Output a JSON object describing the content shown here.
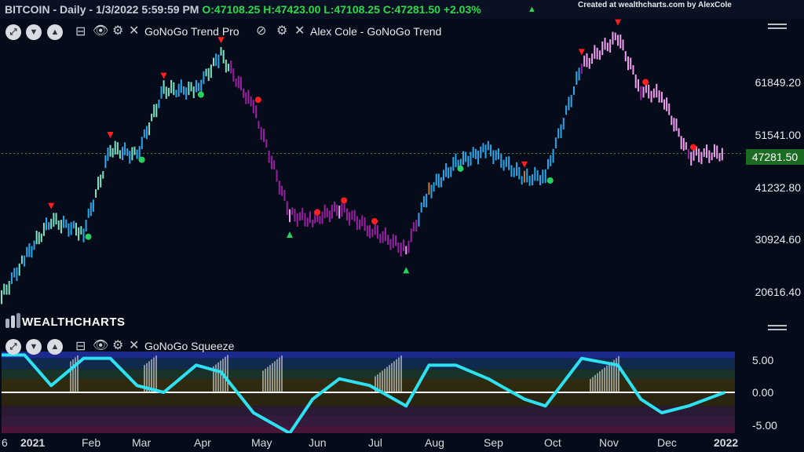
{
  "header": {
    "symbol": "BITCOIN",
    "interval": "Daily",
    "datetime": "1/3/2022 5:59:59 PM",
    "open": "O:47108.25",
    "high": "H:47423.00",
    "low": "L:47108.25",
    "close": "C:47281.50",
    "change": "+2.03%",
    "separator": " - ",
    "credit": "Created at wealthcharts.com by AlexCole"
  },
  "studies": {
    "trend_pro_label": "GoNoGo Trend Pro",
    "trend_label": "Alex Cole - GoNoGo Trend",
    "squeeze_label": "GoNoGo Squeeze"
  },
  "price_axis": {
    "ticks": [
      "61849.20",
      "51541.00",
      "41232.80",
      "30924.60",
      "20616.40"
    ],
    "last_price": "47281.50"
  },
  "lower_axis": {
    "ticks": [
      "5.00",
      "0.00",
      "-5.00"
    ]
  },
  "date_axis": {
    "labels": [
      "6",
      "2021",
      "Feb",
      "Mar",
      "Apr",
      "May",
      "Jun",
      "Jul",
      "Aug",
      "Sep",
      "Oct",
      "Nov",
      "Dec",
      "2022"
    ]
  },
  "logo": {
    "text": "WEALTHCHARTS"
  },
  "colors": {
    "background": "#050b18",
    "strong_go": "#2aa7ea",
    "weak_go": "#7ee3c6",
    "amber": "#d27a2a",
    "weak_nogo": "#f1a0f0",
    "strong_nogo": "#9a1fa3",
    "up_triangle": "#23d462",
    "down_triangle": "#ff1f1f",
    "squeeze_line": "#2de1f0"
  },
  "chart_data": [
    {
      "type": "bar",
      "title": "BITCOIN - Daily",
      "series": [
        {
          "x": [
            "2020-12-20",
            "2021-01-01",
            "2021-01-15",
            "2021-02-01",
            "2021-02-15",
            "2021-03-01",
            "2021-03-15",
            "2021-04-01",
            "2021-04-14",
            "2021-05-01",
            "2021-05-20",
            "2021-06-01",
            "2021-06-15",
            "2021-07-01",
            "2021-07-20",
            "2021-08-01",
            "2021-08-15",
            "2021-09-01",
            "2021-09-20",
            "2021-10-01",
            "2021-10-20",
            "2021-11-08",
            "2021-11-20",
            "2021-12-01",
            "2021-12-15",
            "2022-01-03"
          ],
          "values": [
            23000,
            29500,
            36000,
            34000,
            48000,
            47000,
            58000,
            58000,
            64000,
            55000,
            37000,
            36000,
            38000,
            34500,
            31000,
            41000,
            45500,
            48000,
            43000,
            43500,
            62000,
            67000,
            58000,
            57000,
            47000,
            47281.5
          ]
        }
      ],
      "ylim": [
        17000,
        70000
      ]
    },
    {
      "type": "line",
      "title": "GoNoGo Squeeze",
      "x": [
        "2020-12-20",
        "2021-01-01",
        "2021-01-15",
        "2021-02-01",
        "2021-02-15",
        "2021-03-01",
        "2021-03-15",
        "2021-04-01",
        "2021-04-14",
        "2021-05-01",
        "2021-05-20",
        "2021-06-01",
        "2021-06-15",
        "2021-07-01",
        "2021-07-20",
        "2021-08-01",
        "2021-08-15",
        "2021-09-01",
        "2021-09-20",
        "2021-10-01",
        "2021-10-20",
        "2021-11-08",
        "2021-11-20",
        "2021-12-01",
        "2021-12-15",
        "2022-01-03"
      ],
      "series": [
        {
          "values": [
            5.5,
            5.5,
            1,
            5,
            5,
            1,
            0,
            4,
            3,
            -3,
            -6,
            -1,
            2,
            1,
            -2,
            4,
            4,
            2,
            -1,
            -2,
            5,
            4,
            -1,
            -3,
            -2,
            0
          ]
        }
      ],
      "ylim": [
        -6,
        6
      ],
      "ticks": [
        5,
        0,
        -5
      ]
    }
  ]
}
